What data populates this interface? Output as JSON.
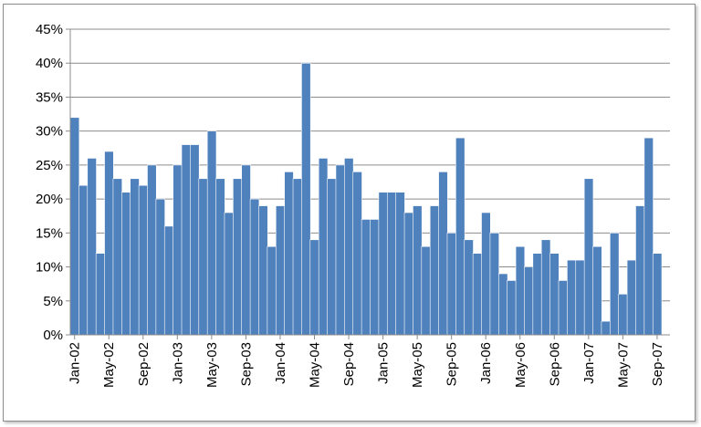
{
  "chart_data": {
    "type": "bar",
    "title": "",
    "xlabel": "",
    "ylabel": "",
    "ylim": [
      0,
      0.45
    ],
    "yticks": [
      "0%",
      "5%",
      "10%",
      "15%",
      "20%",
      "25%",
      "30%",
      "35%",
      "40%",
      "45%"
    ],
    "xtick_labels": [
      "Jan-02",
      "May-02",
      "Sep-02",
      "Jan-03",
      "May-03",
      "Sep-03",
      "Jan-04",
      "May-04",
      "Sep-04",
      "Jan-05",
      "May-05",
      "Sep-05",
      "Jan-06",
      "May-06",
      "Sep-06",
      "Jan-07",
      "May-07",
      "Sep-07"
    ],
    "categories": [
      "Jan-02",
      "Feb-02",
      "Mar-02",
      "Apr-02",
      "May-02",
      "Jun-02",
      "Jul-02",
      "Aug-02",
      "Sep-02",
      "Oct-02",
      "Nov-02",
      "Dec-02",
      "Jan-03",
      "Feb-03",
      "Mar-03",
      "Apr-03",
      "May-03",
      "Jun-03",
      "Jul-03",
      "Aug-03",
      "Sep-03",
      "Oct-03",
      "Nov-03",
      "Dec-03",
      "Jan-04",
      "Feb-04",
      "Mar-04",
      "Apr-04",
      "May-04",
      "Jun-04",
      "Jul-04",
      "Aug-04",
      "Sep-04",
      "Oct-04",
      "Nov-04",
      "Dec-04",
      "Jan-05",
      "Feb-05",
      "Mar-05",
      "Apr-05",
      "May-05",
      "Jun-05",
      "Jul-05",
      "Aug-05",
      "Sep-05",
      "Oct-05",
      "Nov-05",
      "Dec-05",
      "Jan-06",
      "Feb-06",
      "Mar-06",
      "Apr-06",
      "May-06",
      "Jun-06",
      "Jul-06",
      "Aug-06",
      "Sep-06",
      "Oct-06",
      "Nov-06",
      "Dec-06",
      "Jan-07",
      "Feb-07",
      "Mar-07",
      "Apr-07",
      "May-07",
      "Jun-07",
      "Jul-07",
      "Aug-07",
      "Sep-07"
    ],
    "values": [
      0.32,
      0.22,
      0.26,
      0.12,
      0.27,
      0.23,
      0.21,
      0.23,
      0.22,
      0.25,
      0.2,
      0.16,
      0.25,
      0.28,
      0.28,
      0.23,
      0.3,
      0.23,
      0.18,
      0.23,
      0.25,
      0.2,
      0.19,
      0.13,
      0.19,
      0.24,
      0.23,
      0.4,
      0.14,
      0.26,
      0.23,
      0.25,
      0.26,
      0.24,
      0.17,
      0.17,
      0.21,
      0.21,
      0.21,
      0.18,
      0.19,
      0.13,
      0.19,
      0.24,
      0.15,
      0.29,
      0.14,
      0.12,
      0.18,
      0.15,
      0.09,
      0.08,
      0.13,
      0.1,
      0.12,
      0.14,
      0.12,
      0.08,
      0.11,
      0.11,
      0.23,
      0.13,
      0.02,
      0.15,
      0.06,
      0.11,
      0.19,
      0.29,
      0.12
    ],
    "grid": true,
    "legend": "none",
    "colors": {
      "bar": "#4f81bd",
      "grid": "#8c8c8c",
      "axis": "#8c8c8c"
    }
  }
}
